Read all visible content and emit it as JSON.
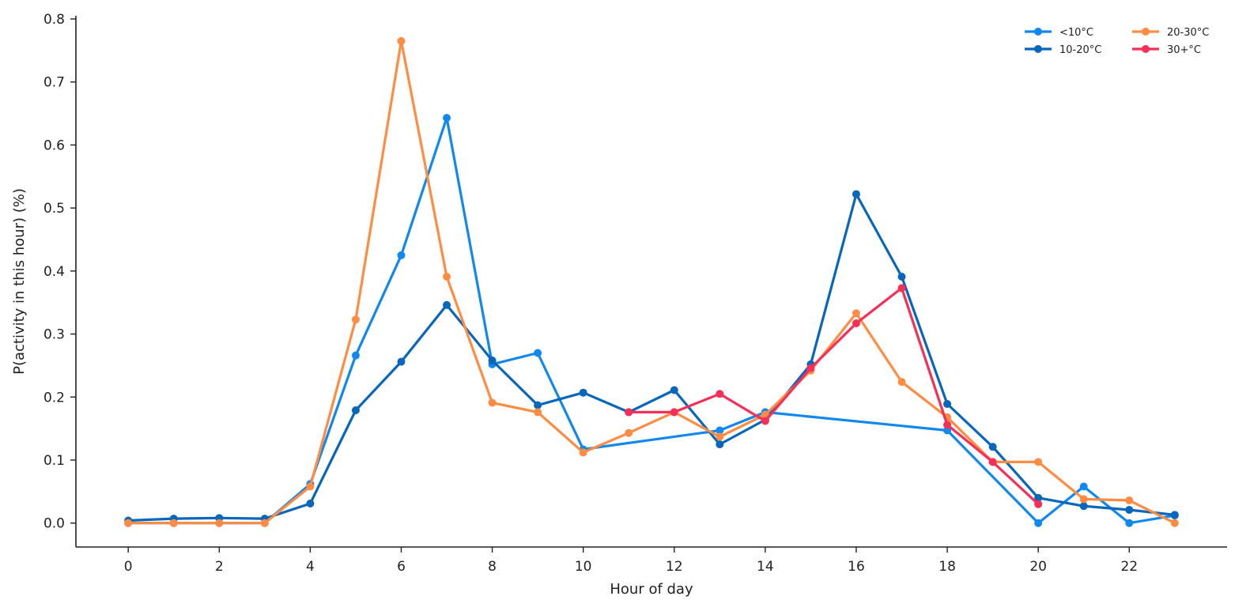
{
  "chart_data": {
    "type": "line",
    "xlabel": "Hour of day",
    "ylabel": "P(activity in this hour) (%)",
    "xlim": [
      -1.15,
      24.15
    ],
    "ylim": [
      -0.038,
      0.805
    ],
    "xticks": [
      0,
      2,
      4,
      6,
      8,
      10,
      12,
      14,
      16,
      18,
      20,
      22
    ],
    "yticks": [
      0.0,
      0.1,
      0.2,
      0.3,
      0.4,
      0.5,
      0.6,
      0.7,
      0.8
    ],
    "ytick_labels": [
      "0.0",
      "0.1",
      "0.2",
      "0.3",
      "0.4",
      "0.5",
      "0.6",
      "0.7",
      "0.8"
    ],
    "grid": false,
    "legend_position": "top-right",
    "series": [
      {
        "name": "<10°C",
        "color": "#1188ee",
        "x": [
          0,
          1,
          2,
          3,
          4,
          5,
          6,
          7,
          8,
          9,
          10,
          13,
          14,
          18,
          20,
          21,
          22,
          23
        ],
        "y": [
          0.0,
          0.0,
          0.0,
          0.0,
          0.062,
          0.266,
          0.425,
          0.643,
          0.252,
          0.27,
          0.117,
          0.147,
          0.176,
          0.147,
          0.0,
          0.058,
          0.0,
          0.012
        ]
      },
      {
        "name": "10-20°C",
        "color": "#0866bb",
        "x": [
          0,
          1,
          2,
          3,
          4,
          5,
          6,
          7,
          8,
          9,
          10,
          11,
          12,
          13,
          14,
          15,
          16,
          17,
          18,
          19,
          20,
          21,
          22,
          23
        ],
        "y": [
          0.004,
          0.007,
          0.008,
          0.007,
          0.031,
          0.179,
          0.256,
          0.346,
          0.258,
          0.187,
          0.207,
          0.176,
          0.211,
          0.125,
          0.164,
          0.252,
          0.522,
          0.391,
          0.189,
          0.121,
          0.04,
          0.027,
          0.021,
          0.013
        ]
      },
      {
        "name": "20-30°C",
        "color": "#ff8c42",
        "x": [
          0,
          1,
          2,
          3,
          4,
          5,
          6,
          7,
          8,
          9,
          10,
          11,
          12,
          13,
          14,
          15,
          16,
          17,
          18,
          19,
          20,
          21,
          22,
          23
        ],
        "y": [
          0.0,
          0.0,
          0.0,
          0.0,
          0.058,
          0.323,
          0.765,
          0.391,
          0.191,
          0.176,
          0.112,
          0.143,
          0.176,
          0.137,
          0.172,
          0.242,
          0.333,
          0.224,
          0.168,
          0.097,
          0.097,
          0.038,
          0.036,
          0.0
        ]
      },
      {
        "name": "30+°C",
        "color": "#f52f57",
        "x": [
          11,
          12,
          13,
          14,
          15,
          16,
          17,
          18,
          19,
          20
        ],
        "y": [
          0.176,
          0.176,
          0.205,
          0.162,
          0.246,
          0.317,
          0.373,
          0.156,
          0.097,
          0.03
        ]
      }
    ]
  }
}
